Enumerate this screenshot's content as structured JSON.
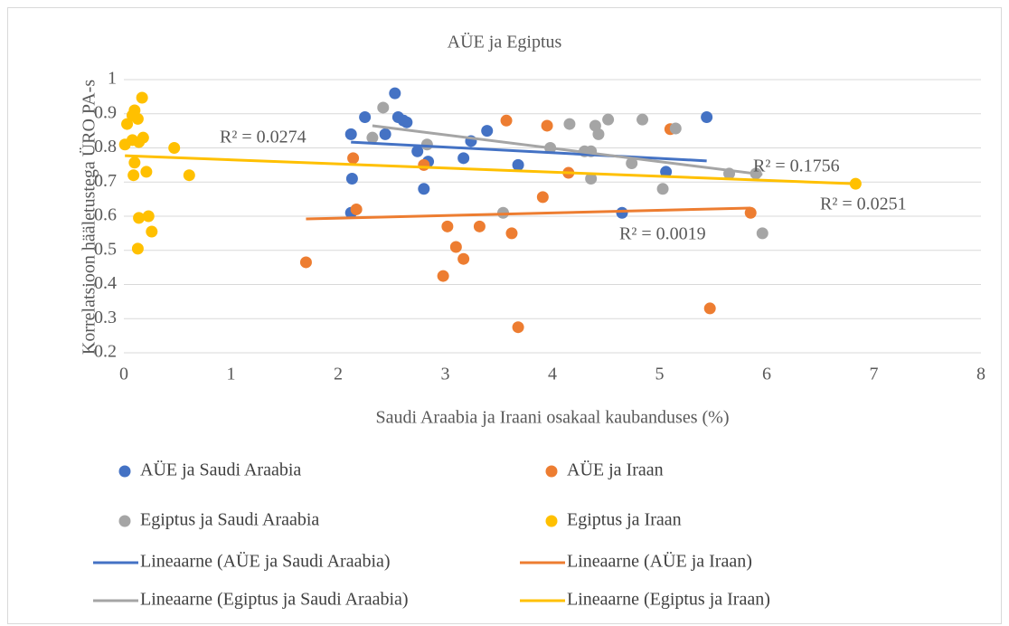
{
  "chart_data": {
    "type": "scatter",
    "title": "AÜE ja Egiptus",
    "xlabel": "Saudi Araabia ja Iraani osakaal kaubanduses (%)",
    "ylabel": "Korrelatsioon hääletustega ÜRO PA-s",
    "xlim": [
      0,
      8
    ],
    "xticks": [
      0,
      1,
      2,
      3,
      4,
      5,
      6,
      7,
      8
    ],
    "ylim": [
      0.2,
      1
    ],
    "yticks": [
      0.2,
      0.3,
      0.4,
      0.5,
      0.6,
      0.7,
      0.8,
      0.9,
      1
    ],
    "grid": true,
    "series": [
      {
        "name": "AÜE ja Saudi Araabia",
        "color": "#4472c4",
        "x": [
          2.12,
          2.25,
          2.53,
          2.56,
          2.61,
          2.64,
          2.44,
          2.13,
          2.12,
          2.74,
          2.84,
          2.8,
          3.17,
          3.24,
          3.39,
          3.68,
          4.65,
          5.06,
          5.44
        ],
        "values": [
          0.84,
          0.89,
          0.96,
          0.89,
          0.88,
          0.875,
          0.84,
          0.71,
          0.61,
          0.79,
          0.76,
          0.68,
          0.77,
          0.82,
          0.85,
          0.75,
          0.61,
          0.73,
          0.89
        ]
      },
      {
        "name": "AÜE ja Iraan",
        "color": "#ed7d31",
        "x": [
          1.7,
          2.14,
          2.17,
          2.8,
          2.98,
          3.02,
          3.1,
          3.17,
          3.32,
          3.57,
          3.62,
          3.68,
          3.91,
          3.95,
          4.15,
          5.1,
          5.85,
          5.47
        ],
        "values": [
          0.465,
          0.77,
          0.62,
          0.75,
          0.425,
          0.57,
          0.51,
          0.475,
          0.57,
          0.88,
          0.55,
          0.275,
          0.656,
          0.865,
          0.727,
          0.855,
          0.61,
          0.33
        ]
      },
      {
        "name": "Egiptus ja Saudi Araabia",
        "color": "#a5a5a5",
        "x": [
          2.42,
          2.32,
          2.83,
          3.54,
          3.98,
          4.16,
          4.3,
          4.36,
          4.4,
          4.43,
          4.52,
          4.36,
          4.74,
          4.84,
          5.03,
          5.15,
          5.65,
          5.9,
          5.96
        ],
        "values": [
          0.918,
          0.83,
          0.81,
          0.61,
          0.8,
          0.87,
          0.79,
          0.79,
          0.865,
          0.84,
          0.883,
          0.71,
          0.755,
          0.883,
          0.68,
          0.857,
          0.725,
          0.725,
          0.55
        ]
      },
      {
        "name": "Egiptus ja Iraan",
        "color": "#ffc000",
        "x": [
          0.01,
          0.03,
          0.08,
          0.1,
          0.13,
          0.08,
          0.14,
          0.18,
          0.17,
          0.1,
          0.09,
          0.21,
          0.47,
          0.61,
          0.14,
          0.23,
          0.26,
          0.13,
          6.83
        ],
        "values": [
          0.81,
          0.87,
          0.895,
          0.91,
          0.885,
          0.823,
          0.817,
          0.83,
          0.947,
          0.757,
          0.72,
          0.73,
          0.8,
          0.72,
          0.595,
          0.6,
          0.555,
          0.505,
          0.695
        ]
      }
    ],
    "trendlines": [
      {
        "name": "Lineaarne (AÜE ja Saudi Araabia)",
        "color": "#4472c4",
        "x": [
          2.12,
          5.44
        ],
        "values": [
          0.817,
          0.762
        ],
        "label": "R² = 0.0274"
      },
      {
        "name": "Lineaarne (AÜE ja Iraan)",
        "color": "#ed7d31",
        "x": [
          1.7,
          5.85
        ],
        "values": [
          0.592,
          0.624
        ],
        "label": "R² = 0.0019"
      },
      {
        "name": "Lineaarne (Egiptus ja Saudi Araabia)",
        "color": "#a5a5a5",
        "x": [
          2.32,
          5.96
        ],
        "values": [
          0.865,
          0.722
        ],
        "label": "R² = 0.1756"
      },
      {
        "name": "Lineaarne (Egiptus ja Iraan)",
        "color": "#ffc000",
        "x": [
          0.01,
          6.83
        ],
        "values": [
          0.777,
          0.695
        ],
        "label": "R² = 0.0251"
      }
    ]
  }
}
